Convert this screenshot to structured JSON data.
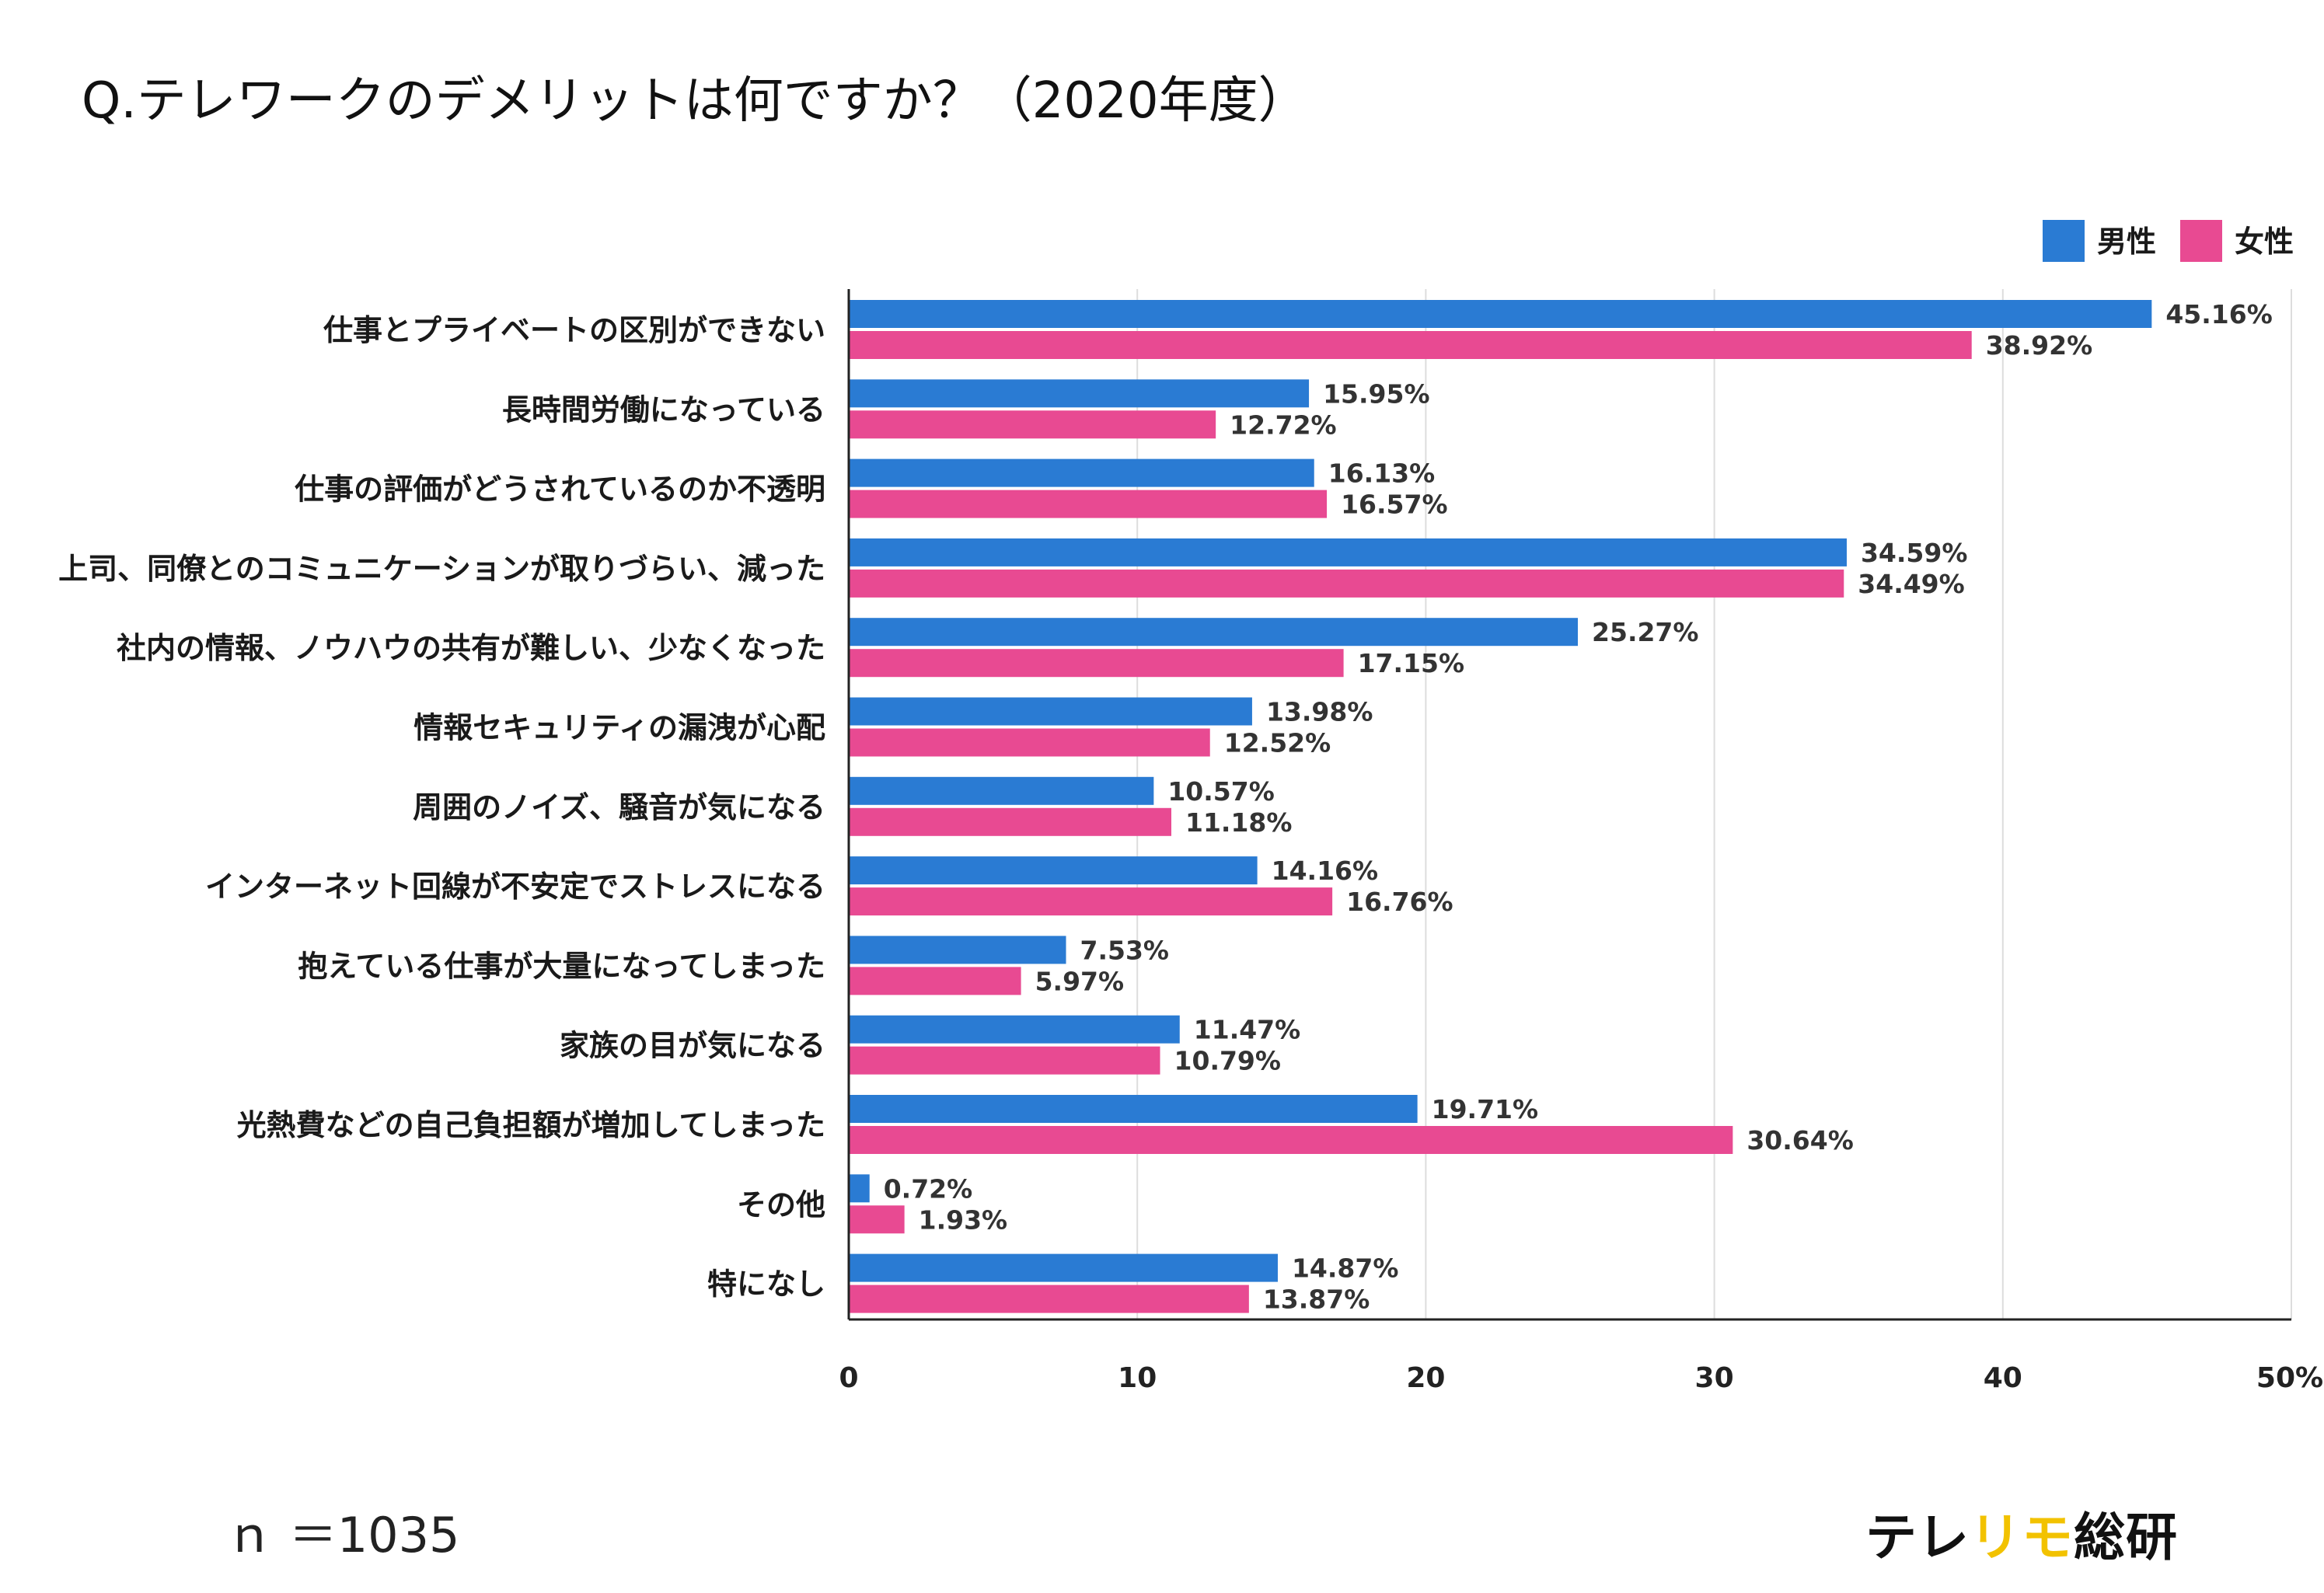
{
  "title": "Q.テレワークのデメリットは何ですか？（2020年度）",
  "footer": {
    "sample_size": "ｎ ＝1035",
    "logo": {
      "part1": "テレ",
      "accent": "リモ",
      "part2": "総研"
    }
  },
  "colors": {
    "male": "#2a7bd3",
    "female": "#e84a92",
    "grid": "#dddddd",
    "axis": "#222222"
  },
  "chart_data": {
    "type": "bar",
    "orientation": "horizontal",
    "categories": [
      "仕事とプライベートの区別ができない",
      "長時間労働になっている",
      "仕事の評価がどうされているのか不透明",
      "上司、同僚とのコミュニケーションが取りづらい、減った",
      "社内の情報、ノウハウの共有が難しい、少なくなった",
      "情報セキュリティの漏洩が心配",
      "周囲のノイズ、騒音が気になる",
      "インターネット回線が不安定でストレスになる",
      "抱えている仕事が大量になってしまった",
      "家族の目が気になる",
      "光熱費などの自己負担額が増加してしまった",
      "その他",
      "特になし"
    ],
    "series": [
      {
        "name": "男性",
        "values": [
          45.16,
          15.95,
          16.13,
          34.59,
          25.27,
          13.98,
          10.57,
          14.16,
          7.53,
          11.47,
          19.71,
          0.72,
          14.87
        ],
        "labels": [
          "45.16%",
          "15.95%",
          "16.13%",
          "34.59%",
          "25.27%",
          "13.98%",
          "10.57%",
          "14.16%",
          "7.53%",
          "11.47%",
          "19.71%",
          "0.72%",
          "14.87%"
        ]
      },
      {
        "name": "女性",
        "values": [
          38.92,
          12.72,
          16.57,
          34.49,
          17.15,
          12.52,
          11.18,
          16.76,
          5.97,
          10.79,
          30.64,
          1.93,
          13.87
        ],
        "labels": [
          "38.92%",
          "12.72%",
          "16.57%",
          "34.49%",
          "17.15%",
          "12.52%",
          "11.18%",
          "16.76%",
          "5.97%",
          "10.79%",
          "30.64%",
          "1.93%",
          "13.87%"
        ]
      }
    ],
    "xlim": [
      0,
      50
    ],
    "xticks": [
      0,
      10,
      20,
      30,
      40,
      50
    ],
    "xtick_labels": [
      "0",
      "10",
      "20",
      "30",
      "40",
      "50%"
    ],
    "legend": "top-right",
    "grid": true
  }
}
